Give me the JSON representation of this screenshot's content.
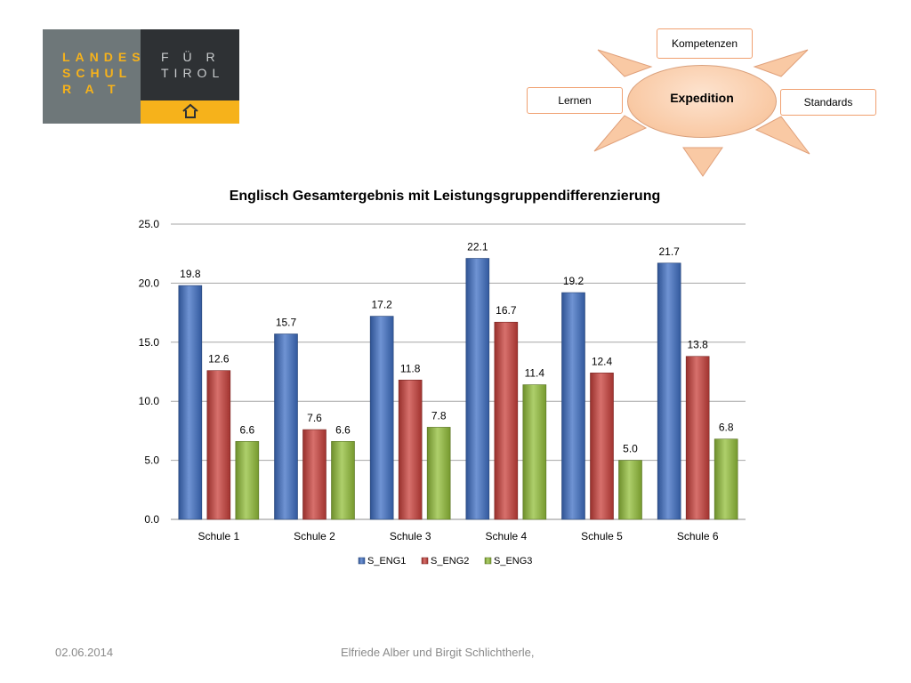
{
  "logo": {
    "line1": "LANDES",
    "line2": "SCHUL",
    "line3": "R A T",
    "line4": "F Ü R",
    "line5": "TIROL",
    "icon": "house-icon",
    "colors": {
      "left": "#6e7779",
      "right": "#2e3134",
      "bottom": "#f6b21b",
      "accent": "#f6b21b"
    }
  },
  "diagram": {
    "center": "Expedition",
    "top": "Kompetenzen",
    "left": "Lernen",
    "right": "Standards",
    "colors": {
      "ray": "#f9c9a4",
      "ray_stroke": "#e0a07a",
      "box_border": "#f0a070"
    }
  },
  "chart_data": {
    "type": "bar",
    "title": "Englisch Gesamtergebnis mit Leistungsgruppendifferenzierung",
    "categories": [
      "Schule 1",
      "Schule 2",
      "Schule 3",
      "Schule 4",
      "Schule 5",
      "Schule 6"
    ],
    "series": [
      {
        "name": "S_ENG1",
        "color": "#3f6fc4",
        "values": [
          19.8,
          15.7,
          17.2,
          22.1,
          19.2,
          21.7
        ]
      },
      {
        "name": "S_ENG2",
        "color": "#c9403b",
        "values": [
          12.6,
          7.6,
          11.8,
          16.7,
          12.4,
          13.8
        ]
      },
      {
        "name": "S_ENG3",
        "color": "#93bf3a",
        "values": [
          6.6,
          6.6,
          7.8,
          11.4,
          5.0,
          6.8
        ]
      }
    ],
    "ylim": [
      0,
      25
    ],
    "yticks": [
      "0.0",
      "5.0",
      "10.0",
      "15.0",
      "20.0",
      "25.0"
    ],
    "grid": true,
    "legend_position": "bottom"
  },
  "footer": {
    "date": "02.06.2014",
    "authors": "Elfriede Alber und Birgit Schlichtherle,"
  }
}
